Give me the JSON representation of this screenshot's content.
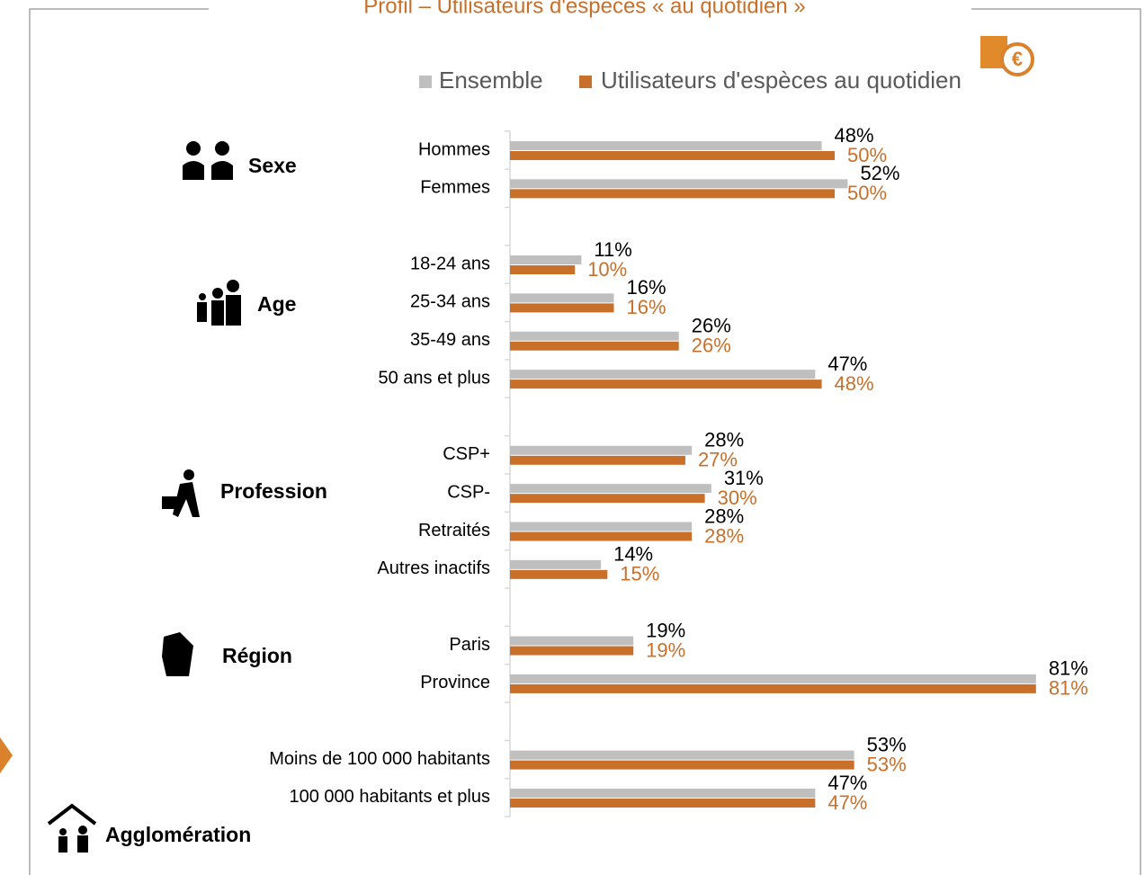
{
  "chart_data": {
    "type": "hbar",
    "title": "Profil – Utilisateurs d'espèces « au quotidien »",
    "categories": [
      "Hommes",
      "Femmes",
      null,
      "18-24 ans",
      "25-34 ans",
      "35-49 ans",
      "50 ans et plus",
      null,
      "CSP+",
      "CSP-",
      "Retraités",
      "Autres inactifs",
      null,
      "Paris",
      "Province",
      null,
      "Moins de 100 000 habitants",
      "100 000 habitants et plus"
    ],
    "group_labels": [
      "Sexe",
      "Age",
      "Profession",
      "Région",
      "Agglomération"
    ],
    "series": [
      {
        "name": "Ensemble",
        "color": "#bfbfbf",
        "values": [
          48,
          52,
          null,
          11,
          16,
          26,
          47,
          null,
          28,
          31,
          28,
          14,
          null,
          19,
          81,
          null,
          53,
          47
        ],
        "value_labels": [
          "48%",
          "52%",
          null,
          "11%",
          "16%",
          "26%",
          "47%",
          null,
          "28%",
          "31%",
          "28%",
          "14%",
          null,
          "19%",
          "81%",
          null,
          "53%",
          "47%"
        ]
      },
      {
        "name": "Utilisateurs d'espèces au quotidien",
        "color": "#c8702a",
        "values": [
          50,
          50,
          null,
          10,
          16,
          26,
          48,
          null,
          27,
          30,
          28,
          15,
          null,
          19,
          81,
          null,
          53,
          47
        ],
        "value_labels": [
          "50%",
          "50%",
          null,
          "10%",
          "16%",
          "26%",
          "48%",
          null,
          "27%",
          "30%",
          "28%",
          "15%",
          null,
          "19%",
          "81%",
          null,
          "53%",
          "47%"
        ]
      }
    ]
  }
}
